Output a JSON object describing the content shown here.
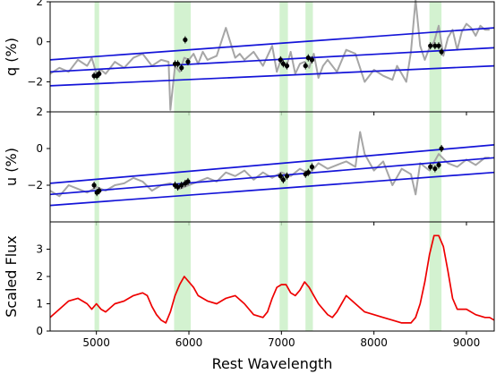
{
  "figure": {
    "x_axis_label": "Rest Wavelength"
  },
  "chart_data": [
    {
      "type": "line",
      "panel": "q",
      "ylabel": "q (%)",
      "xlim": [
        4500,
        9300
      ],
      "ylim": [
        -3.5,
        2
      ],
      "yticks": [
        2,
        0,
        -2
      ],
      "highlight_bands": [
        [
          4980,
          5030
        ],
        [
          5840,
          6020
        ],
        [
          6980,
          7070
        ],
        [
          7260,
          7340
        ],
        [
          8600,
          8730
        ]
      ],
      "series": [
        {
          "role": "binned polarization (grey)",
          "color": "#a6a6a6",
          "x": [
            4500,
            4600,
            4700,
            4800,
            4900,
            4950,
            5000,
            5050,
            5100,
            5200,
            5300,
            5400,
            5500,
            5600,
            5700,
            5780,
            5800,
            5850,
            5900,
            5950,
            6000,
            6050,
            6100,
            6150,
            6200,
            6300,
            6400,
            6500,
            6550,
            6600,
            6700,
            6800,
            6900,
            6950,
            7000,
            7050,
            7100,
            7150,
            7200,
            7250,
            7300,
            7350,
            7400,
            7450,
            7500,
            7600,
            7700,
            7800,
            7900,
            8000,
            8100,
            8200,
            8250,
            8300,
            8350,
            8400,
            8450,
            8500,
            8550,
            8600,
            8650,
            8700,
            8750,
            8800,
            8850,
            8900,
            8950,
            9000,
            9050,
            9100,
            9150,
            9200,
            9250
          ],
          "y": [
            -1.6,
            -1.3,
            -1.5,
            -0.9,
            -1.2,
            -0.8,
            -1.6,
            -1.4,
            -1.6,
            -1.0,
            -1.3,
            -0.8,
            -0.6,
            -1.2,
            -0.9,
            -1.0,
            -3.4,
            -1.2,
            -1.5,
            -0.8,
            -0.9,
            -0.6,
            -1.1,
            -0.5,
            -0.9,
            -0.7,
            0.7,
            -0.8,
            -0.6,
            -0.9,
            -0.5,
            -1.2,
            -0.2,
            -1.5,
            -0.8,
            -1.3,
            -0.5,
            -1.6,
            -1.1,
            -1.0,
            -1.3,
            -0.6,
            -1.8,
            -1.2,
            -0.9,
            -1.5,
            -0.4,
            -0.6,
            -2.0,
            -1.4,
            -1.7,
            -1.9,
            -1.2,
            -1.6,
            -2.0,
            -0.5,
            2.1,
            -0.2,
            -0.9,
            -0.3,
            0.0,
            0.8,
            -0.7,
            0.2,
            0.6,
            -0.4,
            0.5,
            0.9,
            0.7,
            0.3,
            0.8,
            0.6,
            0.6
          ]
        },
        {
          "role": "continuum fit (blue)",
          "color": "#1414d8",
          "x": [
            4500,
            9300
          ],
          "y": [
            -0.9,
            0.7
          ]
        },
        {
          "role": "continuum fit (blue)",
          "color": "#1414d8",
          "x": [
            4500,
            9300
          ],
          "y": [
            -1.5,
            -0.3
          ]
        },
        {
          "role": "continuum fit (blue)",
          "color": "#1414d8",
          "x": [
            4500,
            9300
          ],
          "y": [
            -2.2,
            -1.2
          ]
        },
        {
          "role": "selected points (black)",
          "color": "#000000",
          "x": [
            4975,
            5005,
            5030,
            5850,
            5880,
            5920,
            5960,
            5990,
            6990,
            7020,
            7060,
            7260,
            7290,
            7330,
            8610,
            8660,
            8700,
            8730
          ],
          "y": [
            -1.7,
            -1.7,
            -1.6,
            -1.1,
            -1.1,
            -1.3,
            0.1,
            -1.0,
            -0.9,
            -1.1,
            -1.2,
            -1.2,
            -0.8,
            -0.9,
            -0.2,
            -0.2,
            -0.2,
            -0.5
          ]
        }
      ]
    },
    {
      "type": "line",
      "panel": "u",
      "ylabel": "u (%)",
      "xlim": [
        4500,
        9300
      ],
      "ylim": [
        -4,
        2
      ],
      "yticks": [
        2,
        0,
        -2
      ],
      "highlight_bands": [
        [
          4980,
          5030
        ],
        [
          5840,
          6020
        ],
        [
          6980,
          7070
        ],
        [
          7260,
          7340
        ],
        [
          8600,
          8730
        ]
      ],
      "series": [
        {
          "role": "binned polarization (grey)",
          "color": "#a6a6a6",
          "x": [
            4500,
            4600,
            4700,
            4800,
            4900,
            5000,
            5100,
            5200,
            5300,
            5400,
            5500,
            5600,
            5700,
            5800,
            5900,
            6000,
            6100,
            6200,
            6300,
            6400,
            6500,
            6600,
            6700,
            6800,
            6900,
            7000,
            7100,
            7200,
            7300,
            7400,
            7500,
            7600,
            7700,
            7800,
            7850,
            7900,
            8000,
            8100,
            8200,
            8300,
            8400,
            8450,
            8500,
            8600,
            8700,
            8800,
            8900,
            9000,
            9100,
            9200,
            9250
          ],
          "y": [
            -2.3,
            -2.6,
            -2.0,
            -2.2,
            -2.4,
            -2.1,
            -2.3,
            -2.0,
            -1.9,
            -1.6,
            -1.8,
            -2.3,
            -2.0,
            -1.9,
            -2.2,
            -2.0,
            -1.8,
            -1.6,
            -1.8,
            -1.3,
            -1.5,
            -1.2,
            -1.7,
            -1.3,
            -1.6,
            -1.3,
            -1.5,
            -1.1,
            -1.4,
            -0.8,
            -1.1,
            -0.9,
            -0.7,
            -1.0,
            0.9,
            -0.3,
            -1.2,
            -0.7,
            -2.0,
            -1.1,
            -1.4,
            -2.5,
            -0.8,
            -1.2,
            -0.3,
            -0.8,
            -1.0,
            -0.6,
            -0.9,
            -0.5,
            -0.5
          ]
        },
        {
          "role": "continuum fit (blue)",
          "color": "#1414d8",
          "x": [
            4500,
            9300
          ],
          "y": [
            -1.9,
            0.2
          ]
        },
        {
          "role": "continuum fit (blue)",
          "color": "#1414d8",
          "x": [
            4500,
            9300
          ],
          "y": [
            -2.5,
            -0.5
          ]
        },
        {
          "role": "continuum fit (blue)",
          "color": "#1414d8",
          "x": [
            4500,
            9300
          ],
          "y": [
            -3.1,
            -1.3
          ]
        },
        {
          "role": "selected points (black)",
          "color": "#000000",
          "x": [
            4975,
            5005,
            5030,
            5850,
            5880,
            5920,
            5960,
            5990,
            6990,
            7020,
            7060,
            7260,
            7290,
            7330,
            8610,
            8660,
            8700,
            8730
          ],
          "y": [
            -2.0,
            -2.4,
            -2.3,
            -2.0,
            -2.1,
            -2.0,
            -1.9,
            -1.8,
            -1.5,
            -1.7,
            -1.5,
            -1.4,
            -1.3,
            -1.0,
            -1.0,
            -1.1,
            -0.9,
            0.0
          ]
        }
      ]
    },
    {
      "type": "line",
      "panel": "flux",
      "ylabel": "Scaled Flux",
      "xlabel": "Rest Wavelength",
      "xlim": [
        4500,
        9300
      ],
      "ylim": [
        0,
        4
      ],
      "yticks": [
        0,
        1,
        2,
        3
      ],
      "xticks": [
        5000,
        6000,
        7000,
        8000,
        9000
      ],
      "highlight_bands": [
        [
          4980,
          5030
        ],
        [
          5840,
          6020
        ],
        [
          6980,
          7070
        ],
        [
          7260,
          7340
        ],
        [
          8600,
          8730
        ]
      ],
      "series": [
        {
          "role": "flux (red)",
          "color": "#ee0000",
          "x": [
            4500,
            4600,
            4700,
            4800,
            4900,
            4950,
            5000,
            5050,
            5100,
            5200,
            5300,
            5400,
            5500,
            5550,
            5600,
            5650,
            5700,
            5750,
            5800,
            5850,
            5900,
            5950,
            6000,
            6050,
            6100,
            6200,
            6300,
            6400,
            6500,
            6600,
            6700,
            6800,
            6850,
            6900,
            6950,
            7000,
            7050,
            7100,
            7150,
            7200,
            7250,
            7300,
            7350,
            7400,
            7500,
            7550,
            7600,
            7700,
            7800,
            7900,
            8000,
            8100,
            8200,
            8300,
            8400,
            8450,
            8500,
            8550,
            8600,
            8650,
            8700,
            8750,
            8800,
            8850,
            8900,
            9000,
            9100,
            9200,
            9250,
            9300
          ],
          "y": [
            0.5,
            0.8,
            1.1,
            1.2,
            1.0,
            0.8,
            1.0,
            0.8,
            0.7,
            1.0,
            1.1,
            1.3,
            1.4,
            1.3,
            0.9,
            0.6,
            0.4,
            0.3,
            0.7,
            1.3,
            1.7,
            2.0,
            1.8,
            1.6,
            1.3,
            1.1,
            1.0,
            1.2,
            1.3,
            1.0,
            0.6,
            0.5,
            0.7,
            1.2,
            1.6,
            1.7,
            1.7,
            1.4,
            1.3,
            1.5,
            1.8,
            1.6,
            1.3,
            1.0,
            0.6,
            0.5,
            0.7,
            1.3,
            1.0,
            0.7,
            0.6,
            0.5,
            0.4,
            0.3,
            0.3,
            0.5,
            1.0,
            1.8,
            2.8,
            3.5,
            3.5,
            3.1,
            2.2,
            1.2,
            0.8,
            0.8,
            0.6,
            0.5,
            0.5,
            0.4
          ]
        }
      ]
    }
  ]
}
